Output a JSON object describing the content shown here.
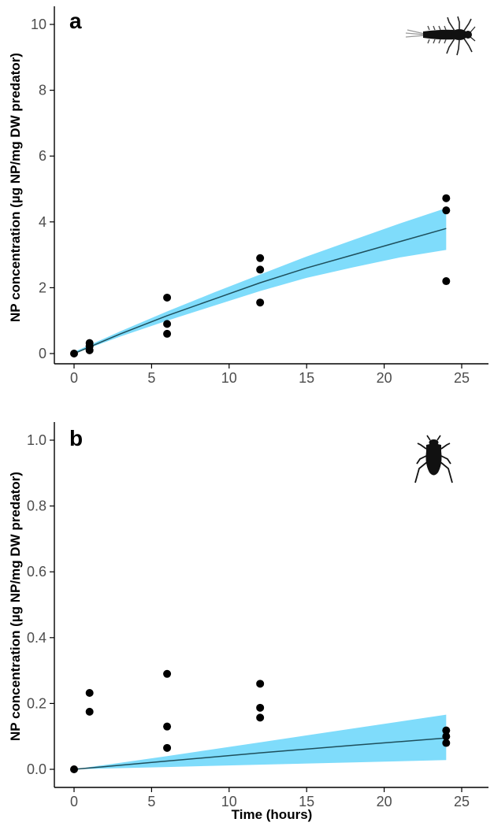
{
  "chart_data": [
    {
      "type": "scatter",
      "panel_label": "a",
      "icon": "mayfly-larva-silhouette",
      "xlabel": "",
      "ylabel": "NP concentration (µg NP/mg DW predator)",
      "xlim": [
        0,
        25
      ],
      "ylim": [
        0,
        10
      ],
      "x_ticks": [
        0,
        5,
        10,
        15,
        20,
        25
      ],
      "x_tick_labels": [
        "0",
        "5",
        "10",
        "15",
        "20",
        "25"
      ],
      "y_ticks": [
        0,
        2,
        4,
        6,
        8,
        10
      ],
      "y_tick_labels": [
        "0",
        "2",
        "4",
        "6",
        "8",
        "10"
      ],
      "grid": false,
      "points": [
        {
          "x": 0,
          "y": 0.0
        },
        {
          "x": 1,
          "y": 0.1
        },
        {
          "x": 1,
          "y": 0.22
        },
        {
          "x": 1,
          "y": 0.32
        },
        {
          "x": 6,
          "y": 0.6
        },
        {
          "x": 6,
          "y": 0.9
        },
        {
          "x": 6,
          "y": 1.7
        },
        {
          "x": 12,
          "y": 1.55
        },
        {
          "x": 12,
          "y": 2.55
        },
        {
          "x": 12,
          "y": 2.9
        },
        {
          "x": 24,
          "y": 2.2
        },
        {
          "x": 24,
          "y": 4.35
        },
        {
          "x": 24,
          "y": 4.72
        }
      ],
      "fit_line": [
        {
          "x": 0,
          "y": 0.0
        },
        {
          "x": 3,
          "y": 0.6
        },
        {
          "x": 6,
          "y": 1.15
        },
        {
          "x": 9,
          "y": 1.65
        },
        {
          "x": 12,
          "y": 2.15
        },
        {
          "x": 15,
          "y": 2.6
        },
        {
          "x": 18,
          "y": 3.0
        },
        {
          "x": 21,
          "y": 3.4
        },
        {
          "x": 24,
          "y": 3.8
        }
      ],
      "band_upper": [
        {
          "x": 0,
          "y": 0.05
        },
        {
          "x": 3,
          "y": 0.68
        },
        {
          "x": 6,
          "y": 1.28
        },
        {
          "x": 9,
          "y": 1.85
        },
        {
          "x": 12,
          "y": 2.4
        },
        {
          "x": 15,
          "y": 2.95
        },
        {
          "x": 18,
          "y": 3.45
        },
        {
          "x": 21,
          "y": 3.95
        },
        {
          "x": 24,
          "y": 4.42
        }
      ],
      "band_lower": [
        {
          "x": 0,
          "y": 0.0
        },
        {
          "x": 3,
          "y": 0.52
        },
        {
          "x": 6,
          "y": 1.0
        },
        {
          "x": 9,
          "y": 1.45
        },
        {
          "x": 12,
          "y": 1.9
        },
        {
          "x": 15,
          "y": 2.3
        },
        {
          "x": 18,
          "y": 2.62
        },
        {
          "x": 21,
          "y": 2.92
        },
        {
          "x": 24,
          "y": 3.15
        }
      ],
      "colors": {
        "band": "#7fdcfb",
        "line": "#1e4f5c",
        "points": "#000000"
      }
    },
    {
      "type": "scatter",
      "panel_label": "b",
      "icon": "water-beetle-silhouette",
      "xlabel": "Time (hours)",
      "ylabel": "NP concentration (µg NP/mg DW predator)",
      "xlim": [
        0,
        25
      ],
      "ylim": [
        0,
        1.0
      ],
      "x_ticks": [
        0,
        5,
        10,
        15,
        20,
        25
      ],
      "x_tick_labels": [
        "0",
        "5",
        "10",
        "15",
        "20",
        "25"
      ],
      "y_ticks": [
        0,
        0.2,
        0.4,
        0.6,
        0.8,
        1.0
      ],
      "y_tick_labels": [
        "0.0",
        "0.2",
        "0.4",
        "0.6",
        "0.8",
        "1.0"
      ],
      "grid": false,
      "points": [
        {
          "x": 0,
          "y": 0.0
        },
        {
          "x": 1,
          "y": 0.175
        },
        {
          "x": 1,
          "y": 0.232
        },
        {
          "x": 6,
          "y": 0.065
        },
        {
          "x": 6,
          "y": 0.13
        },
        {
          "x": 6,
          "y": 0.29
        },
        {
          "x": 12,
          "y": 0.157
        },
        {
          "x": 12,
          "y": 0.187
        },
        {
          "x": 12,
          "y": 0.26
        },
        {
          "x": 24,
          "y": 0.08
        },
        {
          "x": 24,
          "y": 0.1
        },
        {
          "x": 24,
          "y": 0.118
        }
      ],
      "fit_line": [
        {
          "x": 0,
          "y": 0.0
        },
        {
          "x": 6,
          "y": 0.025
        },
        {
          "x": 12,
          "y": 0.05
        },
        {
          "x": 18,
          "y": 0.073
        },
        {
          "x": 24,
          "y": 0.095
        }
      ],
      "band_upper": [
        {
          "x": 0,
          "y": 0.0
        },
        {
          "x": 6,
          "y": 0.04
        },
        {
          "x": 12,
          "y": 0.082
        },
        {
          "x": 18,
          "y": 0.124
        },
        {
          "x": 24,
          "y": 0.166
        }
      ],
      "band_lower": [
        {
          "x": 0,
          "y": 0.0
        },
        {
          "x": 6,
          "y": 0.007
        },
        {
          "x": 12,
          "y": 0.014
        },
        {
          "x": 18,
          "y": 0.021
        },
        {
          "x": 24,
          "y": 0.028
        }
      ],
      "colors": {
        "band": "#7fdcfb",
        "line": "#1e4f5c",
        "points": "#000000"
      }
    }
  ]
}
